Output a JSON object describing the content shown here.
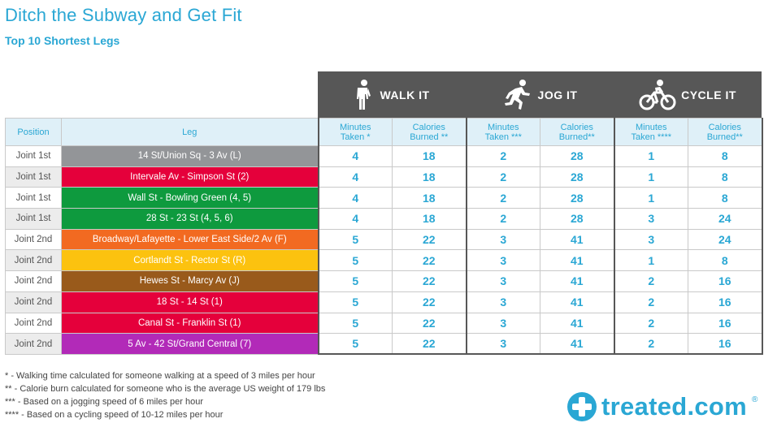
{
  "title": "Ditch the Subway and Get Fit",
  "subtitle": "Top 10 Shortest Legs",
  "groups": {
    "walk": {
      "label": "WALK IT",
      "icon": "walking-person-icon"
    },
    "jog": {
      "label": "JOG IT",
      "icon": "running-person-icon"
    },
    "cycle": {
      "label": "CYCLE IT",
      "icon": "cyclist-icon"
    }
  },
  "columns": {
    "position": "Position",
    "leg": "Leg",
    "walk_min": [
      "Minutes",
      "Taken *"
    ],
    "walk_cal": [
      "Calories",
      "Burned **"
    ],
    "jog_min": [
      "Minutes",
      "Taken ***"
    ],
    "jog_cal": [
      "Calories",
      "Burned**"
    ],
    "cycle_min": [
      "Minutes",
      "Taken ****"
    ],
    "cycle_cal": [
      "Calories",
      "Burned**"
    ]
  },
  "chart_data": {
    "type": "table",
    "title": "Ditch the Subway and Get Fit",
    "subtitle": "Top 10 Shortest Legs",
    "rows": [
      {
        "position": "Joint 1st",
        "leg": "14 St/Union Sq - 3 Av (L)",
        "color": "#939598",
        "walk_min": "4",
        "walk_cal": "18",
        "jog_min": "2",
        "jog_cal": "28",
        "cycle_min": "1",
        "cycle_cal": "8"
      },
      {
        "position": "Joint 1st",
        "leg": "Intervale Av - Simpson St (2)",
        "color": "#e5003b",
        "walk_min": "4",
        "walk_cal": "18",
        "jog_min": "2",
        "jog_cal": "28",
        "cycle_min": "1",
        "cycle_cal": "8"
      },
      {
        "position": "Joint 1st",
        "leg": "Wall St - Bowling Green (4, 5)",
        "color": "#0e9a3e",
        "walk_min": "4",
        "walk_cal": "18",
        "jog_min": "2",
        "jog_cal": "28",
        "cycle_min": "1",
        "cycle_cal": "8"
      },
      {
        "position": "Joint 1st",
        "leg": "28 St - 23 St (4, 5, 6)",
        "color": "#0e9a3e",
        "walk_min": "4",
        "walk_cal": "18",
        "jog_min": "2",
        "jog_cal": "28",
        "cycle_min": "3",
        "cycle_cal": "24"
      },
      {
        "position": "Joint 2nd",
        "leg": "Broadway/Lafayette - Lower East Side/2 Av (F)",
        "color": "#f26a21",
        "walk_min": "5",
        "walk_cal": "22",
        "jog_min": "3",
        "jog_cal": "41",
        "cycle_min": "3",
        "cycle_cal": "24"
      },
      {
        "position": "Joint 2nd",
        "leg": "Cortlandt St - Rector St (R)",
        "color": "#fcc20f",
        "walk_min": "5",
        "walk_cal": "22",
        "jog_min": "3",
        "jog_cal": "41",
        "cycle_min": "1",
        "cycle_cal": "8"
      },
      {
        "position": "Joint 2nd",
        "leg": "Hewes St - Marcy Av (J)",
        "color": "#995a1b",
        "walk_min": "5",
        "walk_cal": "22",
        "jog_min": "3",
        "jog_cal": "41",
        "cycle_min": "2",
        "cycle_cal": "16"
      },
      {
        "position": "Joint 2nd",
        "leg": "18 St - 14 St (1)",
        "color": "#e5003b",
        "walk_min": "5",
        "walk_cal": "22",
        "jog_min": "3",
        "jog_cal": "41",
        "cycle_min": "2",
        "cycle_cal": "16"
      },
      {
        "position": "Joint 2nd",
        "leg": "Canal St - Franklin St (1)",
        "color": "#e5003b",
        "walk_min": "5",
        "walk_cal": "22",
        "jog_min": "3",
        "jog_cal": "41",
        "cycle_min": "2",
        "cycle_cal": "16"
      },
      {
        "position": "Joint 2nd",
        "leg": "5 Av - 42 St/Grand Central (7)",
        "color": "#b22ab8",
        "walk_min": "5",
        "walk_cal": "22",
        "jog_min": "3",
        "jog_cal": "41",
        "cycle_min": "2",
        "cycle_cal": "16"
      }
    ]
  },
  "notes": [
    "* - Walking time calculated for someone walking at a speed of 3 miles per hour",
    "** - Calorie burn calculated for someone who is the average US weight of 179 lbs",
    "*** - Based on a jogging speed of 6 miles per hour",
    "**** - Based on a cycling speed of 10-12 miles per hour"
  ],
  "brand": {
    "name": "treated.com",
    "reg": "®",
    "icon": "medical-cross-icon"
  },
  "colors": {
    "accent": "#2aa7d4",
    "header_band": "#575757",
    "header_row": "#dff0f8"
  }
}
